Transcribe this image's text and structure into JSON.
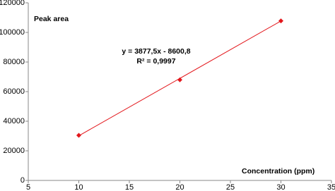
{
  "chart_data": {
    "type": "scatter",
    "y_label": "Peak area",
    "x_label": "Concentration (ppm)",
    "equation": "y = 3877,5x - 8600,8",
    "r_squared": "R² = 0,9997",
    "x": [
      10,
      20,
      30
    ],
    "values": [
      30500,
      68000,
      107800
    ],
    "color": "#e3171c",
    "trendline": {
      "slope": 3877.5,
      "intercept": -8600.8
    },
    "xlim": [
      5,
      35
    ],
    "xticks": [
      5,
      10,
      15,
      20,
      25,
      30,
      35
    ],
    "ylim": [
      0,
      120000
    ],
    "yticks": [
      0,
      20000,
      40000,
      60000,
      80000,
      100000,
      120000
    ],
    "grid": false
  }
}
